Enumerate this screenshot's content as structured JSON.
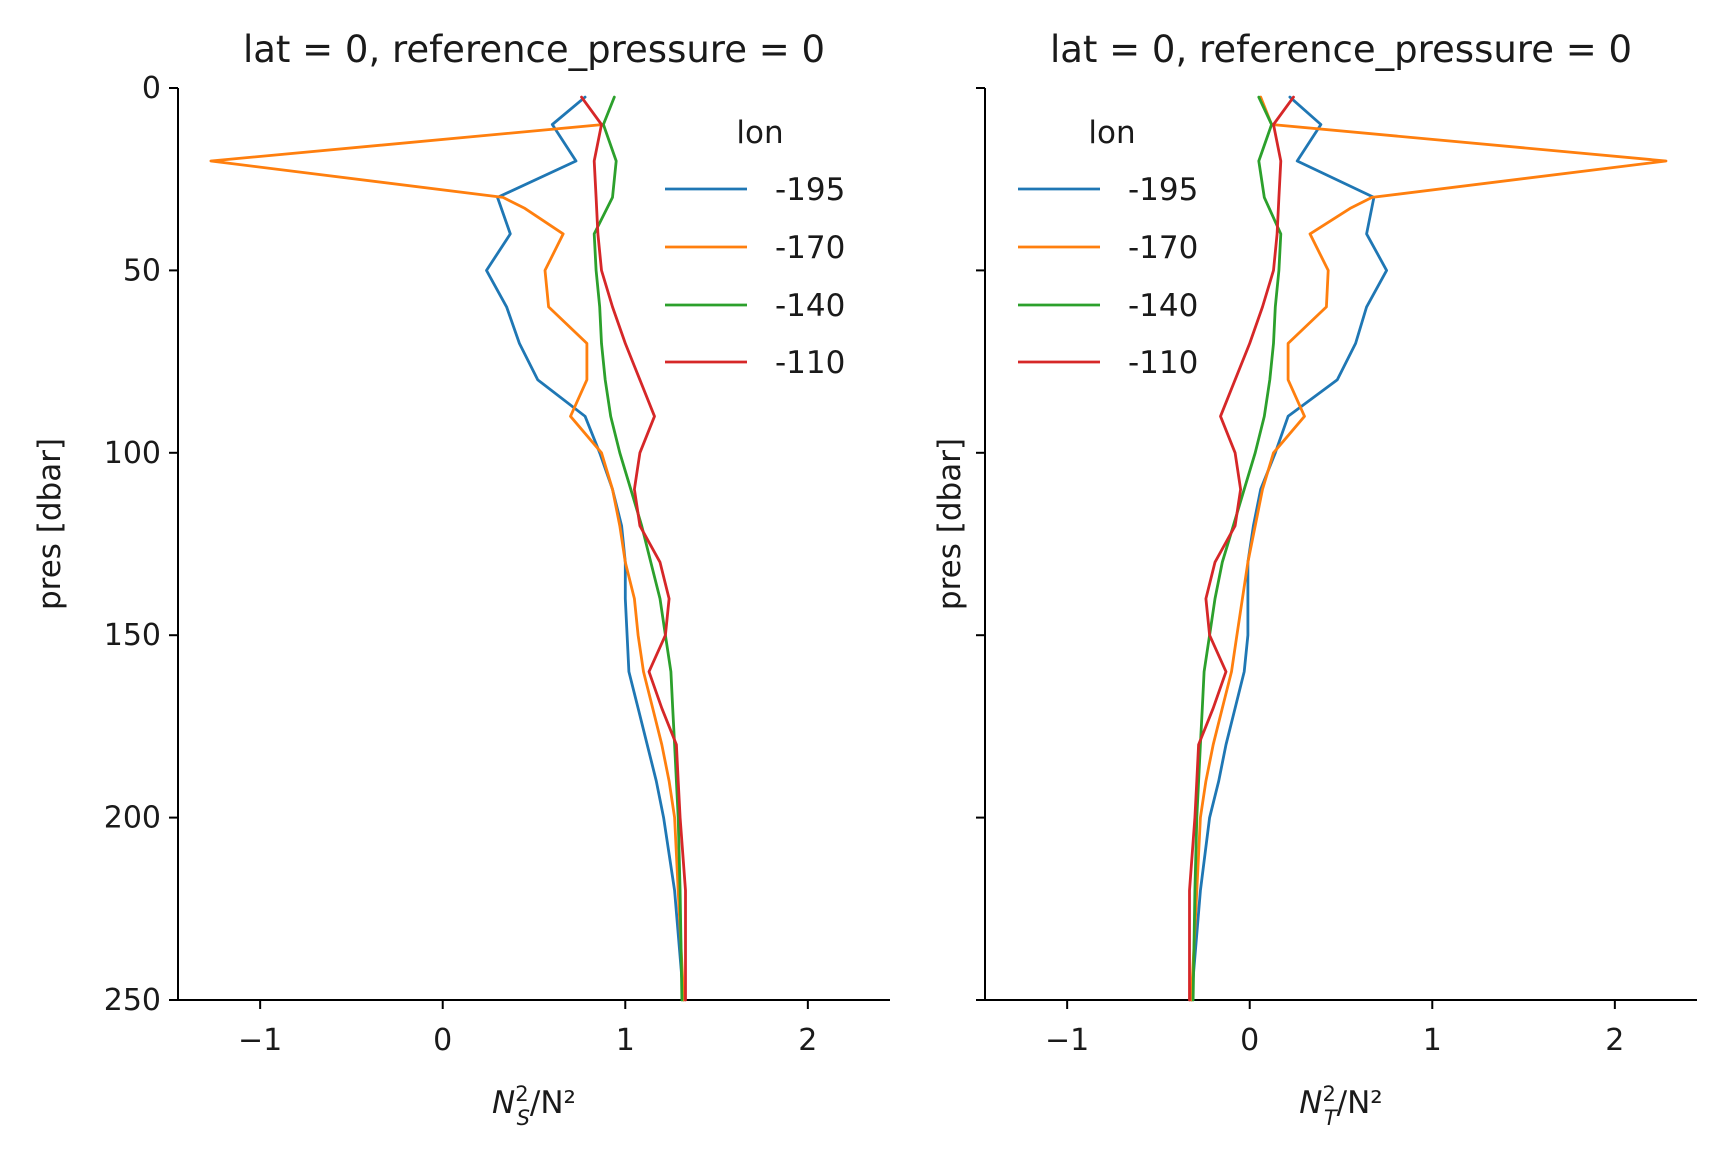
{
  "chart_data": [
    {
      "type": "line",
      "title": "lat = 0, reference_pressure = 0",
      "xlabel_main": "N",
      "xlabel_sup": "2",
      "xlabel_sub": "S",
      "xlabel_tail": "/N²",
      "ylabel": "pres [dbar]",
      "xlim": [
        -1.45,
        2.45
      ],
      "ylim": [
        250,
        0
      ],
      "xticks": [
        -1,
        0,
        1,
        2
      ],
      "xtick_labels": [
        "−1",
        "0",
        "1",
        "2"
      ],
      "yticks": [
        0,
        50,
        100,
        150,
        200,
        250
      ],
      "ytick_labels": [
        "0",
        "50",
        "100",
        "150",
        "200",
        "250"
      ],
      "show_ytick_labels": true,
      "grid": false,
      "legend": {
        "title": "lon",
        "placement": "top-right"
      },
      "series": [
        {
          "name": "-195",
          "color": "#1f77b4",
          "y": [
            2.5,
            10,
            20,
            30,
            40,
            50,
            60,
            70,
            80,
            90,
            100,
            110,
            120,
            130,
            140,
            150,
            160,
            170,
            180,
            190,
            200,
            220,
            250
          ],
          "x": [
            0.78,
            0.6,
            0.73,
            0.3,
            0.37,
            0.24,
            0.35,
            0.42,
            0.52,
            0.78,
            0.86,
            0.93,
            0.98,
            1.0,
            1.0,
            1.01,
            1.02,
            1.07,
            1.12,
            1.17,
            1.21,
            1.27,
            1.32
          ]
        },
        {
          "name": "-170",
          "color": "#ff7f0e",
          "y": [
            10,
            20,
            30,
            33,
            40,
            50,
            60,
            70,
            80,
            90,
            100,
            110,
            120,
            130,
            140,
            150,
            160,
            170,
            180,
            190,
            200,
            220,
            250
          ],
          "x": [
            0.88,
            -1.27,
            0.33,
            0.45,
            0.66,
            0.56,
            0.58,
            0.79,
            0.79,
            0.7,
            0.87,
            0.93,
            0.97,
            1.0,
            1.05,
            1.07,
            1.1,
            1.15,
            1.2,
            1.24,
            1.27,
            1.29,
            1.32
          ]
        },
        {
          "name": "-140",
          "color": "#2ca02c",
          "y": [
            2.5,
            10,
            20,
            30,
            40,
            50,
            60,
            70,
            80,
            90,
            100,
            110,
            120,
            130,
            140,
            150,
            160,
            170,
            180,
            190,
            200,
            220,
            250
          ],
          "x": [
            0.94,
            0.88,
            0.95,
            0.93,
            0.83,
            0.84,
            0.86,
            0.87,
            0.89,
            0.92,
            0.97,
            1.03,
            1.09,
            1.14,
            1.19,
            1.22,
            1.25,
            1.26,
            1.27,
            1.28,
            1.29,
            1.3,
            1.31
          ]
        },
        {
          "name": "-110",
          "color": "#d62728",
          "y": [
            2.5,
            10,
            20,
            30,
            40,
            50,
            60,
            70,
            80,
            90,
            100,
            110,
            120,
            130,
            140,
            150,
            160,
            170,
            180,
            190,
            200,
            220,
            250
          ],
          "x": [
            0.76,
            0.87,
            0.83,
            0.84,
            0.85,
            0.87,
            0.93,
            1.0,
            1.08,
            1.16,
            1.08,
            1.05,
            1.08,
            1.19,
            1.24,
            1.22,
            1.13,
            1.2,
            1.28,
            1.29,
            1.3,
            1.33,
            1.33
          ]
        }
      ]
    },
    {
      "type": "line",
      "title": "lat = 0, reference_pressure = 0",
      "xlabel_main": "N",
      "xlabel_sup": "2",
      "xlabel_sub": "T",
      "xlabel_tail": "/N²",
      "ylabel": "pres [dbar]",
      "xlim": [
        -1.45,
        2.45
      ],
      "ylim": [
        250,
        0
      ],
      "xticks": [
        -1,
        0,
        1,
        2
      ],
      "xtick_labels": [
        "−1",
        "0",
        "1",
        "2"
      ],
      "yticks": [
        0,
        50,
        100,
        150,
        200,
        250
      ],
      "ytick_labels": [
        "0",
        "50",
        "100",
        "150",
        "200",
        "250"
      ],
      "show_ytick_labels": false,
      "grid": false,
      "legend": {
        "title": "lon",
        "placement": "top-left"
      },
      "series": [
        {
          "name": "-195",
          "color": "#1f77b4",
          "y": [
            2.5,
            10,
            20,
            30,
            40,
            50,
            60,
            70,
            80,
            90,
            100,
            110,
            120,
            130,
            140,
            150,
            160,
            170,
            180,
            190,
            200,
            220,
            250
          ],
          "x": [
            0.22,
            0.39,
            0.26,
            0.68,
            0.64,
            0.75,
            0.64,
            0.58,
            0.48,
            0.21,
            0.14,
            0.06,
            0.02,
            -0.01,
            -0.01,
            -0.01,
            -0.03,
            -0.08,
            -0.13,
            -0.17,
            -0.22,
            -0.27,
            -0.32
          ]
        },
        {
          "name": "-170",
          "color": "#ff7f0e",
          "y": [
            2.5,
            10,
            20,
            30,
            33,
            40,
            50,
            60,
            70,
            80,
            90,
            100,
            110,
            120,
            130,
            140,
            150,
            160,
            170,
            180,
            190,
            200,
            220,
            250
          ],
          "x": [
            0.06,
            0.12,
            2.28,
            0.67,
            0.55,
            0.33,
            0.43,
            0.42,
            0.21,
            0.21,
            0.3,
            0.13,
            0.07,
            0.03,
            -0.01,
            -0.04,
            -0.07,
            -0.1,
            -0.15,
            -0.2,
            -0.24,
            -0.27,
            -0.29,
            -0.32
          ]
        },
        {
          "name": "-140",
          "color": "#2ca02c",
          "y": [
            2.5,
            10,
            20,
            30,
            40,
            50,
            60,
            70,
            80,
            90,
            100,
            110,
            120,
            130,
            140,
            150,
            160,
            170,
            180,
            190,
            200,
            220,
            250
          ],
          "x": [
            0.05,
            0.12,
            0.05,
            0.08,
            0.17,
            0.16,
            0.14,
            0.13,
            0.11,
            0.08,
            0.03,
            -0.03,
            -0.09,
            -0.15,
            -0.19,
            -0.22,
            -0.25,
            -0.26,
            -0.27,
            -0.28,
            -0.29,
            -0.3,
            -0.31
          ]
        },
        {
          "name": "-110",
          "color": "#d62728",
          "y": [
            2.5,
            10,
            20,
            30,
            40,
            50,
            60,
            70,
            80,
            90,
            100,
            110,
            120,
            130,
            140,
            150,
            160,
            170,
            180,
            190,
            200,
            220,
            250
          ],
          "x": [
            0.24,
            0.13,
            0.17,
            0.16,
            0.15,
            0.13,
            0.07,
            0.0,
            -0.08,
            -0.16,
            -0.08,
            -0.05,
            -0.08,
            -0.19,
            -0.24,
            -0.22,
            -0.13,
            -0.2,
            -0.28,
            -0.29,
            -0.3,
            -0.33,
            -0.33
          ]
        }
      ]
    }
  ]
}
